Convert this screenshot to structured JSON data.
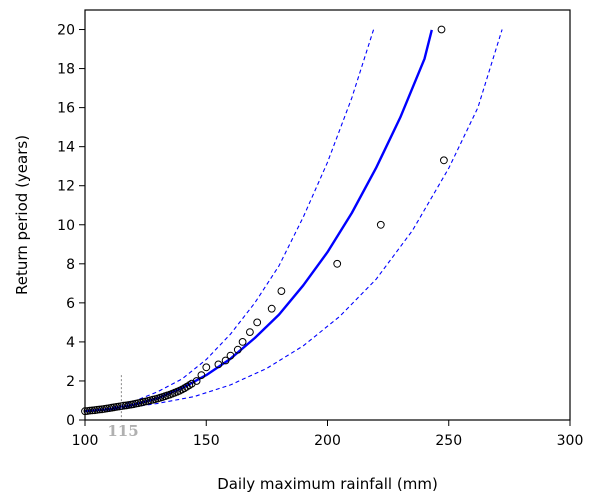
{
  "chart_data": {
    "type": "scatter",
    "title": "",
    "xlabel": "Daily maximum rainfall (mm)",
    "ylabel": "Return period (years)",
    "xlim": [
      100,
      300
    ],
    "ylim": [
      0,
      21
    ],
    "x_ticks": [
      100,
      150,
      200,
      250,
      300
    ],
    "y_ticks": [
      0,
      2,
      4,
      6,
      8,
      10,
      12,
      14,
      16,
      18,
      20
    ],
    "grid": false,
    "legend": "none",
    "annotation": {
      "text": "115",
      "x": 115
    },
    "series": [
      {
        "kind": "points",
        "marker": "open-circle",
        "color": "#000000",
        "x": [
          100,
          101,
          102,
          103,
          104,
          105,
          106,
          107,
          108,
          109,
          110,
          111,
          112,
          113,
          114,
          115,
          116,
          117,
          118,
          119,
          120,
          121,
          122,
          123,
          124,
          125,
          126,
          127,
          128,
          129,
          130,
          131,
          132,
          133,
          134,
          135,
          136,
          137,
          138,
          139,
          140,
          141,
          142,
          143,
          144,
          146,
          148,
          150,
          155,
          158,
          160,
          163,
          165,
          168,
          171,
          177,
          181,
          204,
          222,
          247,
          248
        ],
        "y": [
          0.45,
          0.46,
          0.48,
          0.49,
          0.5,
          0.52,
          0.54,
          0.55,
          0.57,
          0.59,
          0.61,
          0.63,
          0.65,
          0.67,
          0.69,
          0.71,
          0.73,
          0.75,
          0.77,
          0.79,
          0.81,
          0.84,
          0.86,
          0.89,
          0.92,
          0.95,
          0.98,
          1.01,
          1.04,
          1.07,
          1.1,
          1.14,
          1.18,
          1.22,
          1.26,
          1.3,
          1.35,
          1.4,
          1.45,
          1.5,
          1.56,
          1.63,
          1.7,
          1.78,
          1.86,
          2.0,
          2.3,
          2.7,
          2.85,
          3.05,
          3.3,
          3.6,
          4.0,
          4.5,
          5.0,
          5.7,
          6.6,
          8.0,
          10.0,
          20.0,
          13.3
        ]
      },
      {
        "kind": "fit",
        "line": "solid",
        "color": "#0000ff",
        "x": [
          100,
          110,
          120,
          130,
          140,
          150,
          160,
          170,
          180,
          190,
          200,
          210,
          220,
          230,
          240,
          243
        ],
        "y": [
          0.45,
          0.55,
          0.78,
          1.12,
          1.63,
          2.3,
          3.14,
          4.2,
          5.4,
          6.9,
          8.6,
          10.6,
          12.9,
          15.5,
          18.5,
          19.98
        ]
      },
      {
        "kind": "upper-bound",
        "line": "dashed",
        "color": "#0000ff",
        "x": [
          100,
          110,
          120,
          130,
          140,
          150,
          160,
          170,
          180,
          190,
          200,
          210,
          219
        ],
        "y": [
          0.45,
          0.6,
          0.95,
          1.45,
          2.1,
          3.1,
          4.4,
          6.0,
          7.9,
          10.4,
          13.2,
          16.5,
          20.0
        ]
      },
      {
        "kind": "lower-bound",
        "line": "dashed",
        "color": "#0000ff",
        "x": [
          100,
          115,
          130,
          145,
          160,
          175,
          190,
          205,
          220,
          235,
          250,
          262,
          272
        ],
        "y": [
          0.45,
          0.58,
          0.85,
          1.2,
          1.8,
          2.65,
          3.8,
          5.3,
          7.2,
          9.7,
          12.9,
          16.0,
          20.0
        ]
      }
    ]
  }
}
